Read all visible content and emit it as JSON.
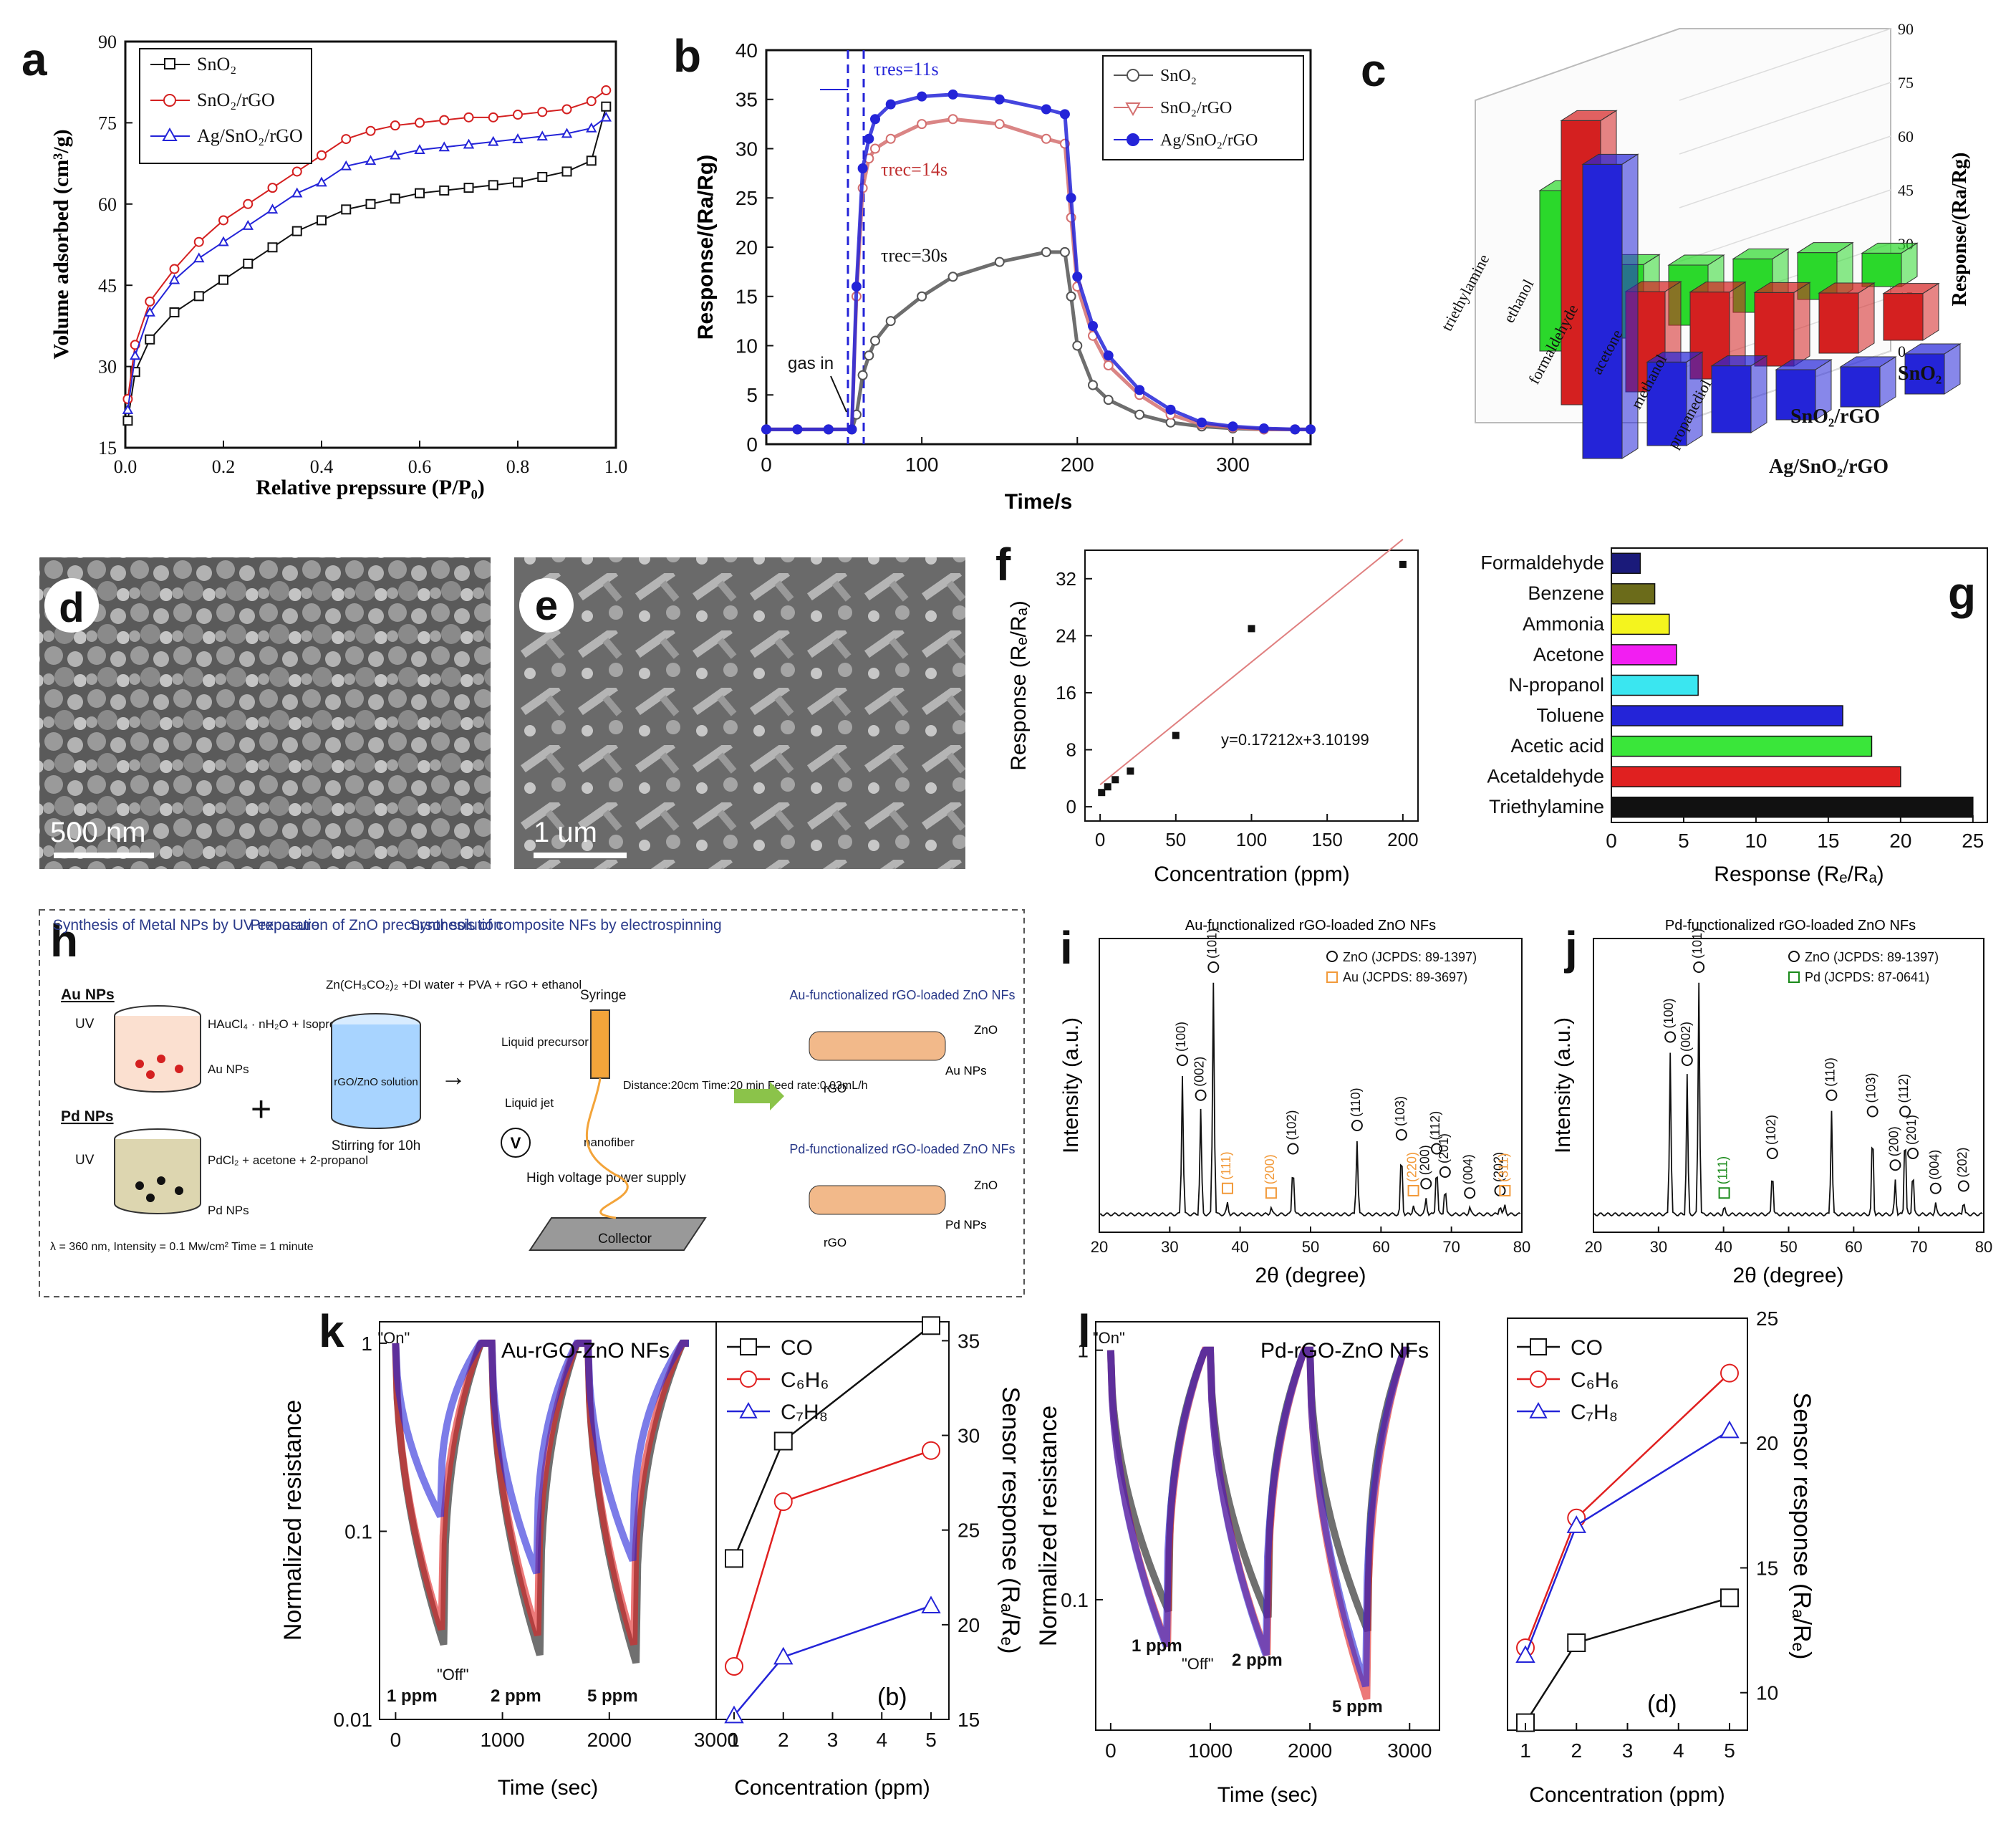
{
  "figure": {
    "panel_labels": [
      "a",
      "b",
      "c",
      "d",
      "e",
      "f",
      "g",
      "h",
      "i",
      "j",
      "k",
      "l"
    ]
  },
  "colors": {
    "black": "#111111",
    "red": "#d42020",
    "blue": "#2424d8",
    "green": "#2bd82b",
    "light_red": "#e07a7a",
    "orange": "#f29a3a",
    "dark_green": "#1a8a1a"
  },
  "chart_data": [
    {
      "id": "a",
      "type": "line",
      "xlabel": "Relative prepssure (P/P₀)",
      "ylabel": "Volume adsorbed (cm³/g)",
      "xlim": [
        0,
        1.0
      ],
      "ylim": [
        15,
        90
      ],
      "xticks": [
        "0.0",
        "0.2",
        "0.4",
        "0.6",
        "0.8",
        "1.0"
      ],
      "yticks": [
        "15",
        "30",
        "45",
        "60",
        "75",
        "90"
      ],
      "x": [
        0.005,
        0.02,
        0.05,
        0.1,
        0.15,
        0.2,
        0.25,
        0.3,
        0.35,
        0.4,
        0.45,
        0.5,
        0.55,
        0.6,
        0.65,
        0.7,
        0.75,
        0.8,
        0.85,
        0.9,
        0.95,
        0.98
      ],
      "series": [
        {
          "name": "SnO₂",
          "marker": "square",
          "values": [
            20,
            29,
            35,
            40,
            43,
            46,
            49,
            52,
            55,
            57,
            59,
            60,
            61,
            62,
            62.5,
            63,
            63.5,
            64,
            65,
            66,
            68,
            78
          ]
        },
        {
          "name": "SnO₂/rGO",
          "marker": "circle",
          "values": [
            24,
            34,
            42,
            48,
            53,
            57,
            60,
            63,
            66,
            69,
            72,
            73.5,
            74.5,
            75,
            75.5,
            76,
            76,
            76.5,
            77,
            77.5,
            79,
            81
          ]
        },
        {
          "name": "Ag/SnO₂/rGO",
          "marker": "triangle",
          "values": [
            22,
            32,
            40,
            46,
            50,
            53,
            56,
            59,
            62,
            64,
            67,
            68,
            69,
            70,
            70.5,
            71,
            71.5,
            72,
            72.5,
            73,
            74,
            76
          ]
        }
      ],
      "legend": [
        "SnO₂",
        "SnO₂/rGO",
        "Ag/SnO₂/rGO"
      ]
    },
    {
      "id": "b",
      "type": "line",
      "xlabel": "Time/s",
      "ylabel": "Response/(Ra/Rg)",
      "xlim": [
        0,
        350
      ],
      "ylim": [
        0,
        40
      ],
      "xticks": [
        "0",
        "100",
        "200",
        "300"
      ],
      "yticks": [
        "0",
        "5",
        "10",
        "15",
        "20",
        "25",
        "30",
        "35",
        "40"
      ],
      "x": [
        0,
        20,
        40,
        55,
        58,
        62,
        66,
        70,
        80,
        100,
        120,
        150,
        180,
        192,
        196,
        200,
        210,
        220,
        240,
        260,
        280,
        300,
        320,
        340,
        350
      ],
      "series": [
        {
          "name": "SnO₂",
          "values": [
            1.5,
            1.5,
            1.5,
            1.5,
            3,
            7,
            9,
            10.5,
            12.5,
            15,
            17,
            18.5,
            19.5,
            19.5,
            15,
            10,
            6,
            4.5,
            3,
            2.2,
            1.8,
            1.6,
            1.5,
            1.5,
            1.5
          ]
        },
        {
          "name": "SnO₂/rGO",
          "values": [
            1.5,
            1.5,
            1.5,
            1.5,
            15,
            26,
            29,
            30,
            31,
            32.5,
            33,
            32.5,
            31,
            30.5,
            23,
            16,
            11,
            8,
            5,
            3,
            2,
            1.7,
            1.5,
            1.5,
            1.5
          ]
        },
        {
          "name": "Ag/SnO₂/rGO",
          "values": [
            1.5,
            1.5,
            1.5,
            1.5,
            16,
            28,
            31,
            33,
            34.5,
            35.3,
            35.5,
            35,
            34,
            33.5,
            25,
            17,
            12,
            9,
            5.5,
            3.5,
            2.2,
            1.8,
            1.6,
            1.5,
            1.5
          ]
        }
      ],
      "legend": [
        "SnO₂",
        "SnO₂/rGO",
        "Ag/SnO₂/rGO"
      ],
      "annotations": {
        "t11": "τres=11s",
        "t14": "τrec=14s",
        "t30": "τrec=30s",
        "gas_in": "gas in"
      }
    },
    {
      "id": "c",
      "type": "bar3d",
      "categories": [
        "triethylamine",
        "ethanol",
        "formaldehyde",
        "acetone",
        "methanol",
        "propanediol"
      ],
      "series": [
        {
          "name": "SnO₂",
          "values": [
            48,
            22,
            18,
            16,
            14,
            10
          ]
        },
        {
          "name": "SnO₂/rGO",
          "values": [
            85,
            30,
            26,
            22,
            18,
            14
          ]
        },
        {
          "name": "Ag/SnO₂/rGO",
          "values": [
            88,
            25,
            20,
            15,
            12,
            12
          ]
        }
      ],
      "zlabel": "Response/(Ra/Rg)",
      "zticks": [
        "0",
        "15",
        "30",
        "45",
        "60",
        "75",
        "90"
      ]
    },
    {
      "id": "f",
      "type": "scatter",
      "xlabel": "Concentration (ppm)",
      "ylabel": "Response (Rₑ/Rₐ)",
      "xlim": [
        -10,
        210
      ],
      "ylim": [
        -2,
        36
      ],
      "xticks": [
        "0",
        "50",
        "100",
        "150",
        "200"
      ],
      "yticks": [
        "0",
        "8",
        "16",
        "24",
        "32"
      ],
      "x": [
        1,
        5,
        10,
        20,
        50,
        100,
        200
      ],
      "y": [
        2,
        2.8,
        3.8,
        5,
        10,
        25,
        34
      ],
      "fit": "y=0.17212x+3.10199"
    },
    {
      "id": "g",
      "type": "bar",
      "orientation": "horizontal",
      "categories": [
        "Formaldehyde",
        "Benzene",
        "Ammonia",
        "Acetone",
        "N-propanol",
        "Toluene",
        "Acetic acid",
        "Acetaldehyde",
        "Triethylamine"
      ],
      "values": [
        2,
        3,
        4,
        4.5,
        6,
        16,
        18,
        20,
        25
      ],
      "bar_colors": [
        "#1a1a7a",
        "#6b6b1a",
        "#f4f41e",
        "#f21ef2",
        "#3ae6f0",
        "#2424d8",
        "#3ae63a",
        "#e02020",
        "#111111"
      ],
      "xlabel": "Response (Rₑ/Rₐ)",
      "xlim": [
        0,
        26
      ],
      "xticks": [
        "0",
        "5",
        "10",
        "15",
        "20",
        "25"
      ]
    },
    {
      "id": "i",
      "type": "line",
      "title": "Au-functionalized rGO-loaded ZnO NFs",
      "xlabel": "2θ (degree)",
      "ylabel": "Intensity (a.u.)",
      "xlim": [
        20,
        80
      ],
      "xticks": [
        "20",
        "30",
        "40",
        "50",
        "60",
        "70",
        "80"
      ],
      "peaks": [
        [
          31.8,
          0.6,
          "(100)"
        ],
        [
          34.4,
          0.45,
          "(002)"
        ],
        [
          36.2,
          1.0,
          "(101)"
        ],
        [
          38.2,
          0.05,
          "(111)"
        ],
        [
          44.4,
          0.03,
          "(200)"
        ],
        [
          47.5,
          0.22,
          "(102)"
        ],
        [
          56.6,
          0.32,
          "(110)"
        ],
        [
          62.9,
          0.28,
          "(103)"
        ],
        [
          64.6,
          0.04,
          "(220)"
        ],
        [
          66.4,
          0.07,
          "(200)"
        ],
        [
          67.9,
          0.22,
          "(112)"
        ],
        [
          69.1,
          0.12,
          "(201)"
        ],
        [
          72.6,
          0.03,
          "(004)"
        ],
        [
          76.9,
          0.04,
          "(202)"
        ],
        [
          77.6,
          0.04,
          "(311)"
        ]
      ],
      "legend": [
        "ZnO (JCPDS: 89-1397)",
        "Au (JCPDS: 89-3697)"
      ]
    },
    {
      "id": "j",
      "type": "line",
      "title": "Pd-functionalized rGO-loaded ZnO NFs",
      "xlabel": "2θ (degree)",
      "ylabel": "Intensity (a.u.)",
      "xlim": [
        20,
        80
      ],
      "xticks": [
        "20",
        "30",
        "40",
        "50",
        "60",
        "70",
        "80"
      ],
      "peaks": [
        [
          31.8,
          0.7,
          "(100)"
        ],
        [
          34.4,
          0.6,
          "(002)"
        ],
        [
          36.2,
          1.0,
          "(101)"
        ],
        [
          40.1,
          0.03,
          "(111)"
        ],
        [
          47.5,
          0.2,
          "(102)"
        ],
        [
          56.6,
          0.45,
          "(110)"
        ],
        [
          62.9,
          0.38,
          "(103)"
        ],
        [
          66.4,
          0.15,
          "(200)"
        ],
        [
          67.9,
          0.38,
          "(112)"
        ],
        [
          69.1,
          0.2,
          "(201)"
        ],
        [
          72.6,
          0.05,
          "(004)"
        ],
        [
          76.9,
          0.06,
          "(202)"
        ]
      ],
      "legend": [
        "ZnO (JCPDS: 89-1397)",
        "Pd (JCPDS: 87-0641)"
      ]
    },
    {
      "id": "k_left",
      "type": "line",
      "title": "Au-rGO-ZnO NFs",
      "xlabel": "Time (sec)",
      "ylabel": "Normalized resistance",
      "yscale": "log",
      "xlim": [
        -150,
        3000
      ],
      "ylim": [
        0.01,
        1.3
      ],
      "xticks": [
        "0",
        "1000",
        "2000",
        "3000"
      ],
      "yticks": [
        "0.01",
        "0.1",
        "1"
      ],
      "labels": {
        "on": "\"On\"",
        "off": "\"Off\"",
        "c1": "1 ppm",
        "c2": "2 ppm",
        "c5": "5 ppm"
      }
    },
    {
      "id": "k_right",
      "type": "line",
      "xlabel": "Concentration (ppm)",
      "ylabel": "Sensor response (Rₐ/Rₑ)",
      "xlim": [
        1,
        5
      ],
      "ylim": [
        15,
        36
      ],
      "xticks": [
        "1",
        "2",
        "3",
        "4",
        "5"
      ],
      "yticks": [
        "15",
        "20",
        "25",
        "30",
        "35"
      ],
      "x": [
        1,
        2,
        5
      ],
      "series": [
        {
          "name": "CO",
          "marker": "square",
          "values": [
            23.5,
            29.7,
            35.8
          ]
        },
        {
          "name": "C₆H₆",
          "marker": "circle",
          "values": [
            17.8,
            26.5,
            29.2
          ]
        },
        {
          "name": "C₇H₈",
          "marker": "triangle",
          "values": [
            15.2,
            18.3,
            21
          ]
        }
      ],
      "panel_tag": "(b)"
    },
    {
      "id": "l_left",
      "type": "line",
      "title": "Pd-rGO-ZnO NFs",
      "xlabel": "Time (sec)",
      "ylabel": "Normalized resistance",
      "yscale": "log",
      "xlim": [
        -150,
        3300
      ],
      "ylim": [
        0.03,
        1.3
      ],
      "xticks": [
        "0",
        "1000",
        "2000",
        "3000"
      ],
      "yticks": [
        "0.1",
        "1"
      ],
      "labels": {
        "on": "\"On\"",
        "off": "\"Off\"",
        "c1": "1 ppm",
        "c2": "2 ppm",
        "c5": "5 ppm"
      }
    },
    {
      "id": "l_right",
      "type": "line",
      "xlabel": "Concentration (ppm)",
      "ylabel": "Sensor response (Rₐ/Rₑ)",
      "xlim": [
        1,
        5
      ],
      "ylim": [
        8.5,
        25
      ],
      "xticks": [
        "1",
        "2",
        "3",
        "4",
        "5"
      ],
      "yticks": [
        "10",
        "15",
        "20",
        "25"
      ],
      "x": [
        1,
        2,
        5
      ],
      "series": [
        {
          "name": "CO",
          "marker": "square",
          "values": [
            8.8,
            12,
            13.8
          ]
        },
        {
          "name": "C₆H₆",
          "marker": "circle",
          "values": [
            11.8,
            17,
            22.8
          ]
        },
        {
          "name": "C₇H₈",
          "marker": "triangle",
          "values": [
            11.5,
            16.7,
            20.5
          ]
        }
      ],
      "panel_tag": "(d)"
    }
  ],
  "sem": {
    "d_scale": "500 nm",
    "e_scale": "1 um"
  },
  "schematic_h": {
    "col1_title": "Synthesis of Metal NPs by UV exposure",
    "col2_title": "Preparation of ZnO precursor solution",
    "col3_title": "Synthesis of composite NFs by electrospinning",
    "au_nps": "Au NPs",
    "pd_nps": "Pd NPs",
    "au_recipe": "HAuCl₄ · nH₂O + Isopropanol",
    "pd_recipe": "PdCl₂ + acetone + 2-propanol",
    "uv": "UV",
    "au_label": "Au NPs",
    "pd_label": "Pd NPs",
    "uv_params": "λ = 360 nm, Intensity = 0.1 Mw/cm² Time = 1 minute",
    "zn_recipe": "Zn(CH₃CO₂)₂ +DI water + PVA + rGO + ethanol",
    "solution": "rGO/ZnO solution",
    "stirring": "Stirring for 10h",
    "syringe": "Syringe",
    "liquid_precursor": "Liquid precursor",
    "liquid_jet": "Liquid jet",
    "nanofiber": "nanofiber",
    "params": "Distance:20cm Time:20 min Feed rate:0.03mL/h",
    "hv": "High voltage power supply",
    "collector": "Collector",
    "v": "V",
    "au_product": "Au-functionalized rGO-loaded ZnO NFs",
    "pd_product": "Pd-functionalized rGO-loaded ZnO NFs",
    "zno": "ZnO",
    "rgo": "rGO",
    "au_np": "Au NPs",
    "pd_np": "Pd NPs"
  }
}
